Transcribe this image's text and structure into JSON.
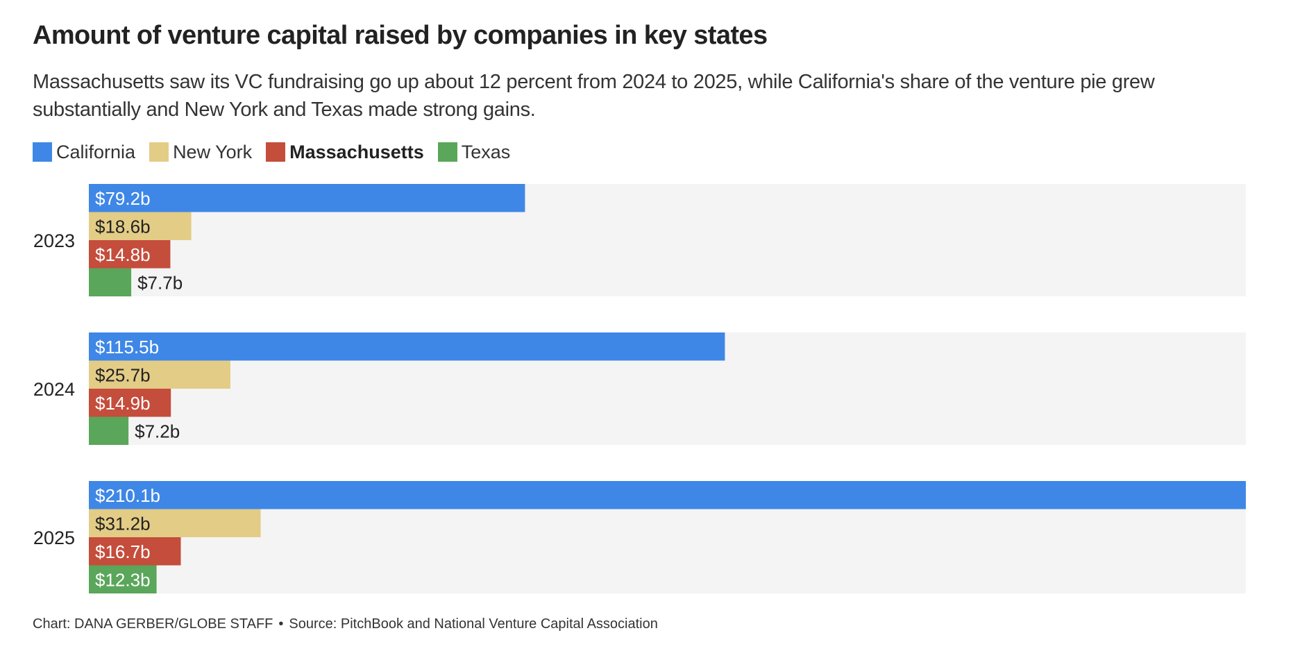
{
  "header": {
    "title": "Amount of venture capital raised by companies in key states",
    "subtitle": "Massachusetts saw its VC fundraising go up about 12 percent from 2024 to 2025, while California's share of the venture pie grew substantially and New York and Texas made strong gains."
  },
  "legend": [
    {
      "label": "California",
      "color": "#3e87e6",
      "bold": false
    },
    {
      "label": "New York",
      "color": "#e3cc86",
      "bold": false
    },
    {
      "label": "Massachusetts",
      "color": "#c44d3c",
      "bold": true
    },
    {
      "label": "Texas",
      "color": "#5aa65a",
      "bold": false
    }
  ],
  "chart_data": {
    "type": "bar",
    "orientation": "horizontal-grouped",
    "title": "Amount of venture capital raised by companies in key states",
    "xlabel": "",
    "ylabel": "",
    "xlim": [
      0,
      210.1
    ],
    "unit": "billion USD",
    "categories": [
      "2023",
      "2024",
      "2025"
    ],
    "background_color": "#f4f4f4",
    "series": [
      {
        "name": "California",
        "color": "#3e87e6",
        "label_color": "#ffffff",
        "values": [
          79.2,
          115.5,
          210.1
        ],
        "labels": [
          "$79.2b",
          "$115.5b",
          "$210.1b"
        ]
      },
      {
        "name": "New York",
        "color": "#e3cc86",
        "label_color": "#222222",
        "values": [
          18.6,
          25.7,
          31.2
        ],
        "labels": [
          "$18.6b",
          "$25.7b",
          "$31.2b"
        ]
      },
      {
        "name": "Massachusetts",
        "color": "#c44d3c",
        "label_color": "#ffffff",
        "values": [
          14.8,
          14.9,
          16.7
        ],
        "labels": [
          "$14.8b",
          "$14.9b",
          "$16.7b"
        ]
      },
      {
        "name": "Texas",
        "color": "#5aa65a",
        "label_color": "#ffffff",
        "label_outside_color": "#222222",
        "values": [
          7.7,
          7.2,
          12.3
        ],
        "labels": [
          "$7.7b",
          "$7.2b",
          "$12.3b"
        ]
      }
    ]
  },
  "footer": {
    "credit": "Chart: DANA GERBER/GLOBE STAFF",
    "separator": "•",
    "source": "Source: PitchBook and National Venture Capital Association"
  }
}
